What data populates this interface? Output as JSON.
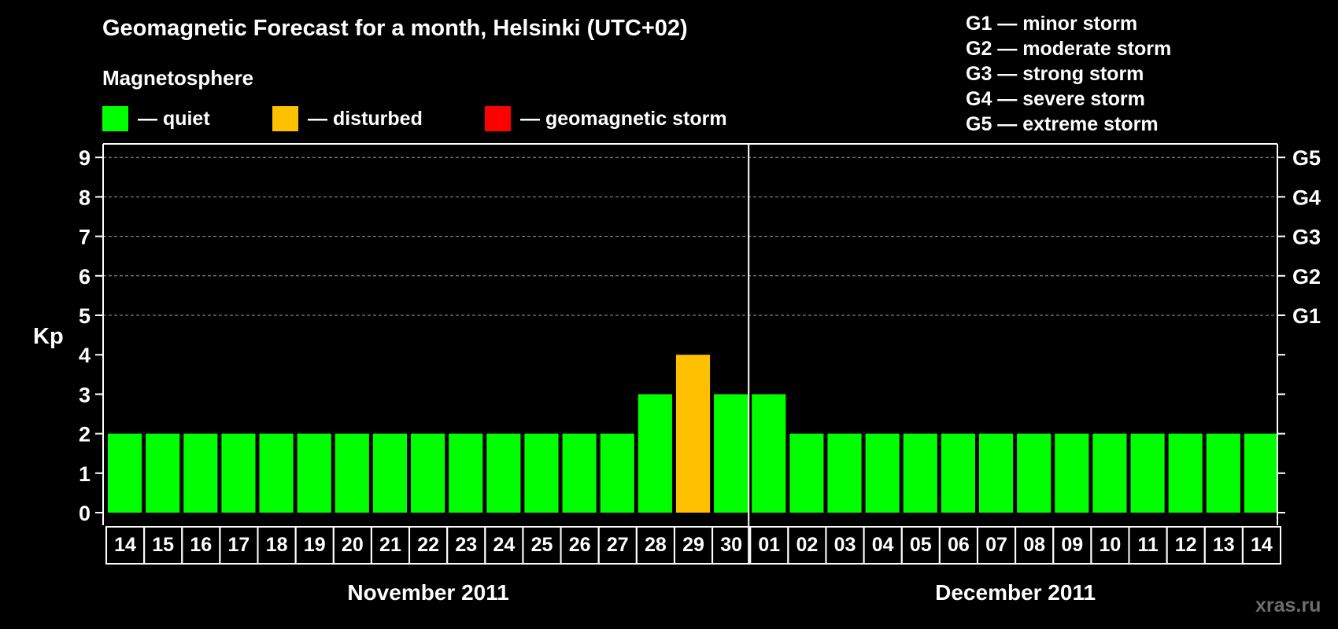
{
  "colors": {
    "quiet": "#00ff00",
    "disturbed": "#ffc000",
    "storm": "#ff0000",
    "background": "#000000",
    "axis": "#ffffff"
  },
  "legend": {
    "title": "Magnetosphere",
    "items": [
      {
        "label": "— quiet",
        "color": "#00ff00"
      },
      {
        "label": "— disturbed",
        "color": "#ffc000"
      },
      {
        "label": "— geomagnetic storm",
        "color": "#ff0000"
      }
    ]
  },
  "storm_scale": [
    "G1 — minor storm",
    "G2 — moderate storm",
    "G3 — strong storm",
    "G4 — severe storm",
    "G5 — extreme storm"
  ],
  "watermark": "xras.ru",
  "chart_data": {
    "type": "bar",
    "title": "Geomagnetic Forecast for a month, Helsinki (UTC+02)",
    "ylabel": "Kp",
    "ylim": [
      0,
      9
    ],
    "y_ticks": [
      "0",
      "1",
      "2",
      "3",
      "4",
      "5",
      "6",
      "7",
      "8",
      "9"
    ],
    "right_ticks": [
      {
        "value": 5,
        "label": "G1"
      },
      {
        "value": 6,
        "label": "G2"
      },
      {
        "value": 7,
        "label": "G3"
      },
      {
        "value": 8,
        "label": "G4"
      },
      {
        "value": 9,
        "label": "G5"
      }
    ],
    "grid_from": 5,
    "categories": [
      "14",
      "15",
      "16",
      "17",
      "18",
      "19",
      "20",
      "21",
      "22",
      "23",
      "24",
      "25",
      "26",
      "27",
      "28",
      "29",
      "30",
      "01",
      "02",
      "03",
      "04",
      "05",
      "06",
      "07",
      "08",
      "09",
      "10",
      "11",
      "12",
      "13",
      "14"
    ],
    "values": [
      2,
      2,
      2,
      2,
      2,
      2,
      2,
      2,
      2,
      2,
      2,
      2,
      2,
      2,
      3,
      4,
      3,
      3,
      2,
      2,
      2,
      2,
      2,
      2,
      2,
      2,
      2,
      2,
      2,
      2,
      2
    ],
    "months": [
      {
        "label": "November 2011",
        "from": 0,
        "to": 16
      },
      {
        "label": "December 2011",
        "from": 17,
        "to": 30
      }
    ],
    "thresholds": {
      "disturbed": 4,
      "storm": 5
    }
  }
}
